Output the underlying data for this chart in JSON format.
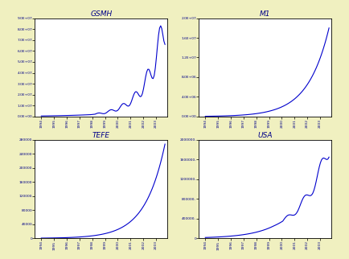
{
  "title_GSMH": "GSMH",
  "title_M1": "M1",
  "title_TEFE": "TEFE",
  "title_USA": "USA",
  "bg_color": "#f0f0c0",
  "plot_bg": "#ffffff",
  "line_color": "#0000cc",
  "GSMH_yticks": [
    0.0,
    10000000.0,
    20000000.0,
    30000000.0,
    40000000.0,
    50000000.0,
    60000000.0,
    70000000.0,
    80000000.0,
    90000000.0
  ],
  "GSMH_ytick_labels": [
    "0.0E+00",
    "1.0E+07",
    "2.0E+07",
    "3.0E+07",
    "4.0E+07",
    "5.0E+07",
    "6.0E+07",
    "7.0E+07",
    "8.0E+07",
    "9.0E+07"
  ],
  "M1_yticks": [
    0.0,
    4000000.0,
    8000000.0,
    12000000.0,
    16000000.0,
    20000000.0
  ],
  "M1_ytick_labels": [
    "0.0E+00",
    "4.0E+06",
    "8.0E+06",
    "1.2E+07",
    "1.6E+07",
    "2.0E+07"
  ],
  "TEFE_yticks": [
    0,
    40000,
    80000,
    120000,
    160000,
    200000,
    240000,
    280000
  ],
  "TEFE_ytick_labels": [
    "0",
    "40000",
    "80000",
    "120000",
    "160000",
    "200000",
    "240000",
    "280000"
  ],
  "USA_yticks": [
    0,
    400000,
    800000,
    1200000,
    1600000,
    2000000
  ],
  "USA_ytick_labels": [
    "0",
    "400000-",
    "800000-",
    "1200000-",
    "1600000-",
    "2000000-"
  ],
  "GSMH_ylim": [
    0,
    90000000.0
  ],
  "M1_ylim": [
    0,
    20000000.0
  ],
  "TEFE_ylim": [
    0,
    280000
  ],
  "USA_ylim": [
    0,
    2000000
  ],
  "year_ticks": [
    1994,
    1995,
    1996,
    1997,
    1998,
    1999,
    2000,
    2001,
    2002,
    2003
  ]
}
